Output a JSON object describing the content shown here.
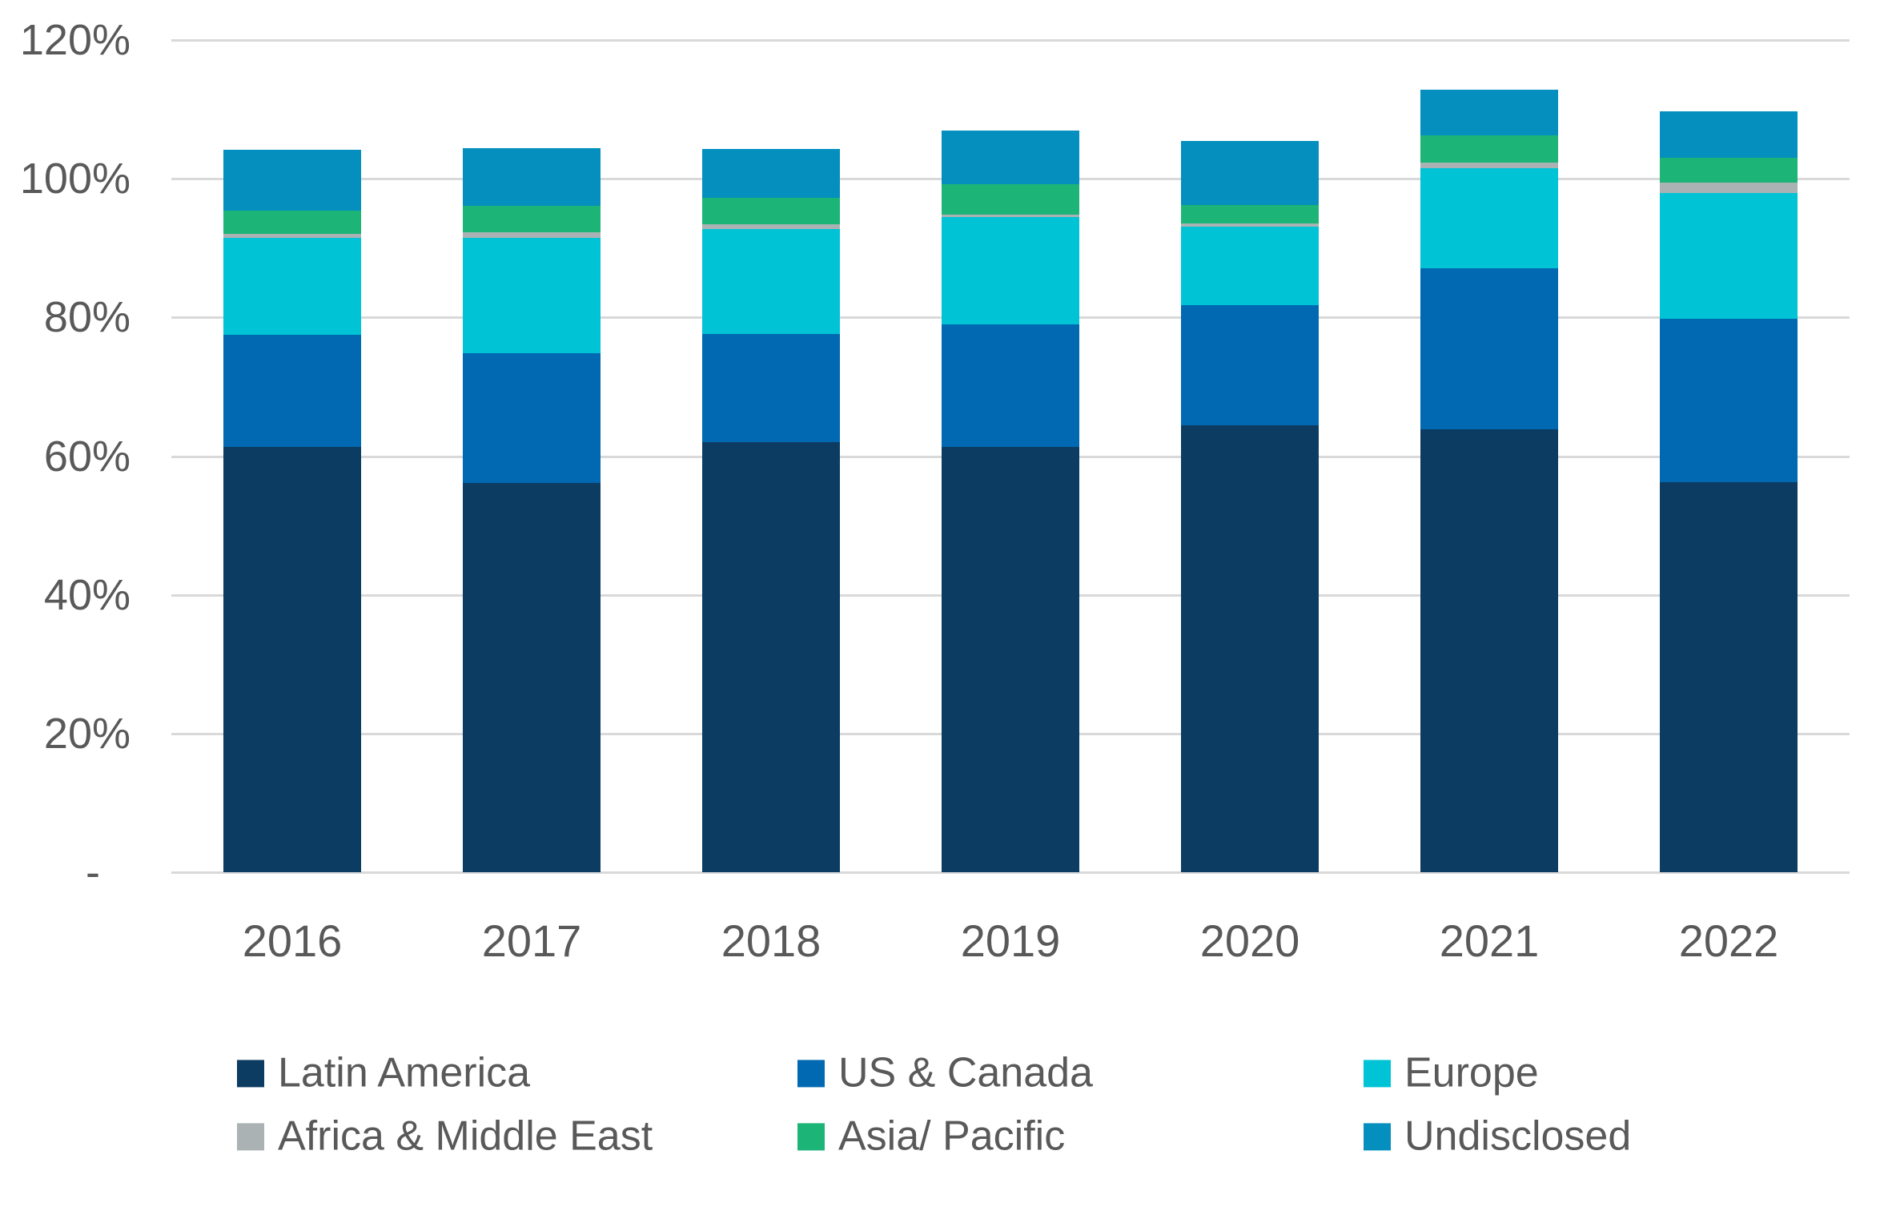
{
  "chart_data": {
    "type": "bar",
    "stacked": true,
    "title": "",
    "categories": [
      "2016",
      "2017",
      "2018",
      "2019",
      "2020",
      "2021",
      "2022"
    ],
    "series": [
      {
        "name": "Latin America",
        "color": "#0d3c63",
        "values": [
          61.3,
          56.1,
          62.0,
          61.3,
          64.4,
          63.9,
          56.3
        ]
      },
      {
        "name": "US & Canada",
        "color": "#0069b1",
        "values": [
          16.2,
          18.7,
          15.6,
          17.7,
          17.4,
          23.2,
          23.5
        ]
      },
      {
        "name": "Europe",
        "color": "#00c4d6",
        "values": [
          14.0,
          16.7,
          15.1,
          15.5,
          11.3,
          14.4,
          18.1
        ]
      },
      {
        "name": "Africa & Middle East",
        "color": "#aab2b3",
        "values": [
          0.6,
          0.8,
          0.7,
          0.3,
          0.5,
          0.8,
          1.6
        ]
      },
      {
        "name": "Asia/ Pacific",
        "color": "#1db477",
        "values": [
          3.3,
          3.8,
          3.9,
          4.4,
          2.6,
          4.0,
          3.5
        ]
      },
      {
        "name": "Undisclosed",
        "color": "#048fbe",
        "values": [
          8.8,
          8.3,
          7.0,
          7.7,
          9.2,
          6.5,
          6.7
        ]
      }
    ],
    "y_axis": {
      "min": 0,
      "max": 120,
      "step": 20,
      "tick_labels": {
        "120": "120%",
        "100": "100%",
        "80": "80%",
        "60": "60%",
        "40": "40%",
        "20": "20%",
        "0": "-"
      }
    },
    "x_axis": {
      "label": ""
    },
    "legend_position": "bottom",
    "legend_rows": [
      [
        "Latin America",
        "US & Canada",
        "Europe"
      ],
      [
        "Africa & Middle East",
        "Asia/ Pacific",
        "Undisclosed"
      ]
    ],
    "grid": true
  },
  "colors": {
    "background": "#ffffff",
    "gridline": "#d9d9d9",
    "axis_text": "#595959"
  }
}
